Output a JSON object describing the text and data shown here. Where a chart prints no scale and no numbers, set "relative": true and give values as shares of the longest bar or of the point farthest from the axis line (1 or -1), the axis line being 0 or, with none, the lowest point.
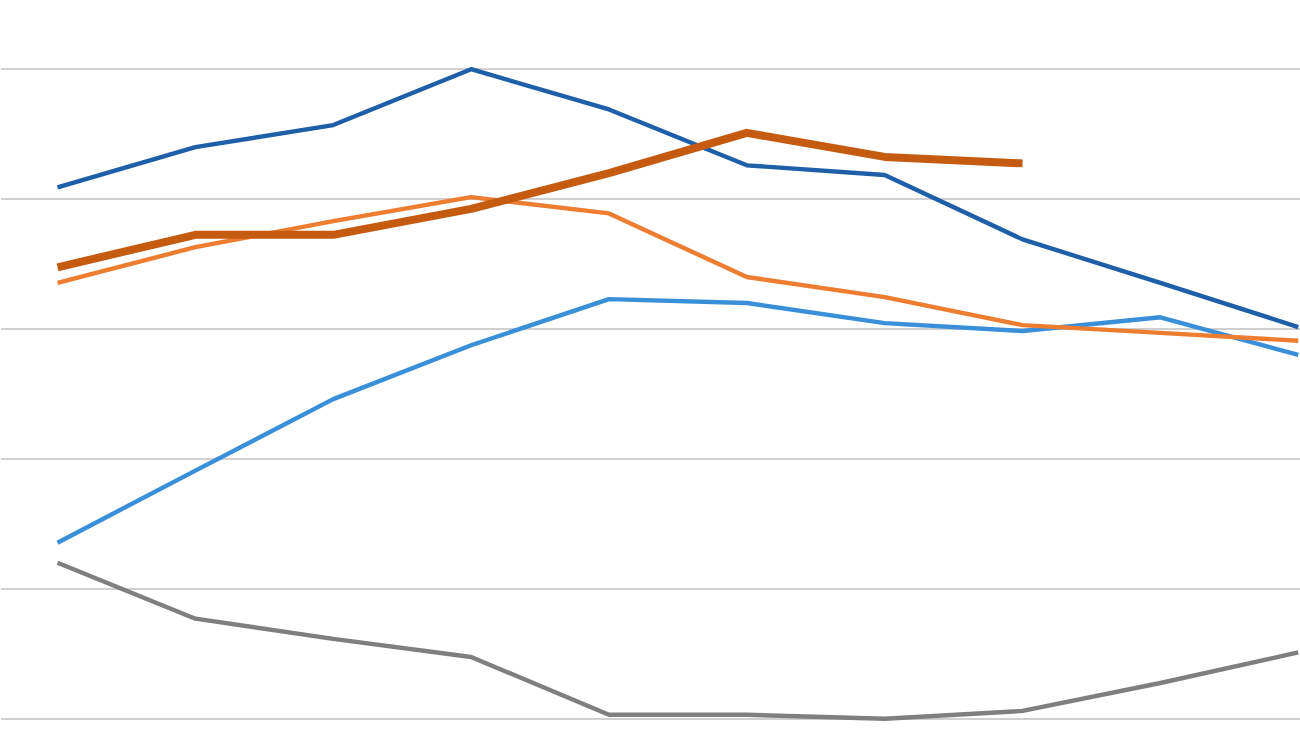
{
  "chart_data": {
    "type": "line",
    "relative": true,
    "grid": "y",
    "marker": "none",
    "line_style": "solid",
    "categories": [
      null,
      null,
      null,
      null,
      null,
      null,
      null,
      null,
      null,
      null
    ],
    "series": [
      {
        "color": "#7f7f7f",
        "values": [
          0.24,
          0.154,
          0.123,
          0.095,
          0.006,
          0.006,
          0,
          0.012,
          0.055,
          0.102
        ]
      },
      {
        "color": "#3a8fd9",
        "values": [
          0.271,
          0.382,
          0.492,
          0.575,
          0.646,
          0.64,
          0.609,
          0.597,
          0.618,
          0.56
        ]
      },
      {
        "color": "#ed7d31",
        "values": [
          0.671,
          0.726,
          0.766,
          0.803,
          0.778,
          0.68,
          0.649,
          0.606,
          0.594,
          0.582
        ]
      },
      {
        "color": "#1f5fa8",
        "values": [
          0.818,
          0.88,
          0.914,
          1.0,
          0.938,
          0.852,
          0.837,
          0.738,
          0.671,
          0.603
        ]
      },
      {
        "color": "#c55a11",
        "values": [
          0.695,
          0.745,
          0.745,
          0.785,
          0.84,
          0.902,
          0.865,
          0.855,
          null,
          null
        ]
      }
    ]
  }
}
